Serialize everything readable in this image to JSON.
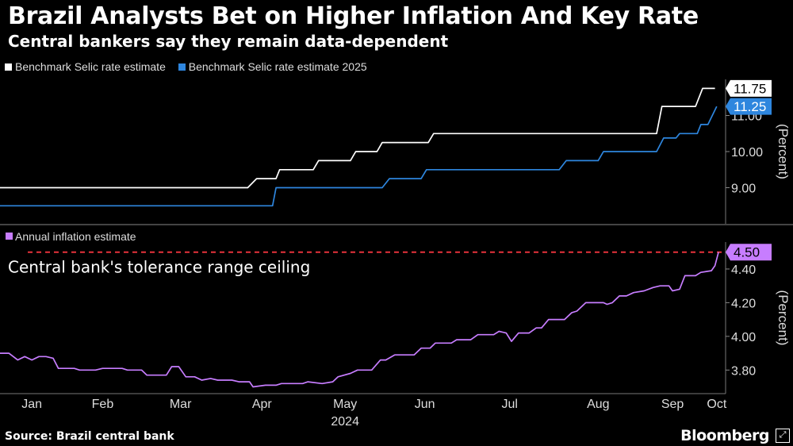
{
  "header": {
    "title": "Brazil Analysts Bet on Higher Inflation And Key Rate",
    "subtitle": "Central bankers say they remain data-dependent"
  },
  "colors": {
    "background": "#000000",
    "selic": "#ffffff",
    "selic2025": "#2e86de",
    "inflation": "#c77dff",
    "ceiling": "#e5323b",
    "grid": "#666666"
  },
  "footer": {
    "source": "Source: Brazil central bank",
    "brand": "Bloomberg",
    "brand_icon": "expand-icon"
  },
  "chart_data": [
    {
      "type": "line",
      "title": "Benchmark Selic rate estimates",
      "ylabel": "(Percent)",
      "ylim": [
        8.0,
        12.0
      ],
      "yticks": [
        "9.00",
        "10.00",
        "11.00"
      ],
      "ytick_values": [
        9.0,
        10.0,
        11.0
      ],
      "x_unit": "week index 0-40 (2024)",
      "legend": [
        {
          "name": "Benchmark Selic rate estimate",
          "color": "#ffffff"
        },
        {
          "name": "Benchmark Selic rate estimate 2025",
          "color": "#2e86de"
        }
      ],
      "series": [
        {
          "name": "Benchmark Selic rate estimate",
          "color": "#ffffff",
          "points": [
            [
              0,
              9.0
            ],
            [
              14,
              9.0
            ],
            [
              14.5,
              9.25
            ],
            [
              15.6,
              9.25
            ],
            [
              15.8,
              9.5
            ],
            [
              17.7,
              9.5
            ],
            [
              18,
              9.75
            ],
            [
              19.8,
              9.75
            ],
            [
              20.1,
              10.0
            ],
            [
              21.3,
              10.0
            ],
            [
              21.6,
              10.25
            ],
            [
              24.2,
              10.25
            ],
            [
              24.5,
              10.5
            ],
            [
              37.1,
              10.5
            ],
            [
              37.4,
              11.25
            ],
            [
              39.3,
              11.25
            ],
            [
              39.7,
              11.75
            ],
            [
              40.4,
              11.75
            ]
          ],
          "last_label": "11.75"
        },
        {
          "name": "Benchmark Selic rate estimate 2025",
          "color": "#2e86de",
          "points": [
            [
              0,
              8.5
            ],
            [
              15.4,
              8.5
            ],
            [
              15.6,
              9.0
            ],
            [
              21.6,
              9.0
            ],
            [
              22.0,
              9.25
            ],
            [
              23.8,
              9.25
            ],
            [
              24.1,
              9.5
            ],
            [
              31.6,
              9.5
            ],
            [
              32.0,
              9.75
            ],
            [
              33.8,
              9.75
            ],
            [
              34.1,
              10.0
            ],
            [
              37.1,
              10.0
            ],
            [
              37.5,
              10.375
            ],
            [
              38.2,
              10.375
            ],
            [
              38.4,
              10.5
            ],
            [
              39.4,
              10.5
            ],
            [
              39.6,
              10.75
            ],
            [
              40.0,
              10.75
            ],
            [
              40.5,
              11.25
            ]
          ],
          "last_label": "11.25"
        }
      ]
    },
    {
      "type": "line",
      "title": "Annual inflation estimate",
      "ylabel": "(Percent)",
      "ylim": [
        3.66,
        4.56
      ],
      "yticks": [
        "3.80",
        "4.00",
        "4.20",
        "4.40"
      ],
      "ytick_values": [
        3.8,
        4.0,
        4.2,
        4.4
      ],
      "x_unit": "week index 0-40 (2024)",
      "xticks": [
        "Jan",
        "Feb",
        "Mar",
        "Apr",
        "May",
        "Jun",
        "Jul",
        "Aug",
        "Sep",
        "Oct"
      ],
      "xtick_values": [
        1.8,
        5.8,
        10.2,
        14.8,
        19.5,
        24.0,
        28.8,
        33.8,
        38.0,
        40.5
      ],
      "year_label": "2024",
      "legend": [
        {
          "name": "Annual inflation estimate",
          "color": "#c77dff"
        }
      ],
      "series": [
        {
          "name": "Annual inflation estimate",
          "color": "#c77dff",
          "points": [
            [
              0,
              3.9
            ],
            [
              0.5,
              3.9
            ],
            [
              1.0,
              3.86
            ],
            [
              1.4,
              3.88
            ],
            [
              1.8,
              3.86
            ],
            [
              2.2,
              3.88
            ],
            [
              2.6,
              3.88
            ],
            [
              3.0,
              3.87
            ],
            [
              3.3,
              3.81
            ],
            [
              4.2,
              3.81
            ],
            [
              4.5,
              3.8
            ],
            [
              5.4,
              3.8
            ],
            [
              5.8,
              3.81
            ],
            [
              6.9,
              3.81
            ],
            [
              7.2,
              3.8
            ],
            [
              8.0,
              3.8
            ],
            [
              8.3,
              3.77
            ],
            [
              9.4,
              3.77
            ],
            [
              9.7,
              3.82
            ],
            [
              10.1,
              3.82
            ],
            [
              10.5,
              3.76
            ],
            [
              11.0,
              3.76
            ],
            [
              11.4,
              3.74
            ],
            [
              11.9,
              3.75
            ],
            [
              12.3,
              3.74
            ],
            [
              13.1,
              3.74
            ],
            [
              13.5,
              3.73
            ],
            [
              14.1,
              3.73
            ],
            [
              14.3,
              3.7
            ],
            [
              15.0,
              3.71
            ],
            [
              15.6,
              3.71
            ],
            [
              15.9,
              3.72
            ],
            [
              17.1,
              3.72
            ],
            [
              17.4,
              3.73
            ],
            [
              18.2,
              3.72
            ],
            [
              18.8,
              3.73
            ],
            [
              19.1,
              3.76
            ],
            [
              19.8,
              3.78
            ],
            [
              20.2,
              3.8
            ],
            [
              21.0,
              3.8
            ],
            [
              21.5,
              3.86
            ],
            [
              21.8,
              3.86
            ],
            [
              22.3,
              3.89
            ],
            [
              23.4,
              3.89
            ],
            [
              23.8,
              3.93
            ],
            [
              24.3,
              3.93
            ],
            [
              24.6,
              3.96
            ],
            [
              25.5,
              3.96
            ],
            [
              25.8,
              3.98
            ],
            [
              26.6,
              3.98
            ],
            [
              27.0,
              4.01
            ],
            [
              27.9,
              4.01
            ],
            [
              28.2,
              4.03
            ],
            [
              28.6,
              4.02
            ],
            [
              28.9,
              3.97
            ],
            [
              29.3,
              4.02
            ],
            [
              29.9,
              4.02
            ],
            [
              30.3,
              4.05
            ],
            [
              30.6,
              4.05
            ],
            [
              31.0,
              4.1
            ],
            [
              31.9,
              4.1
            ],
            [
              32.3,
              4.14
            ],
            [
              32.6,
              4.15
            ],
            [
              33.1,
              4.2
            ],
            [
              34.1,
              4.2
            ],
            [
              34.3,
              4.19
            ],
            [
              34.6,
              4.2
            ],
            [
              35.0,
              4.24
            ],
            [
              35.4,
              4.24
            ],
            [
              35.8,
              4.26
            ],
            [
              36.4,
              4.27
            ],
            [
              36.9,
              4.29
            ],
            [
              37.3,
              4.3
            ],
            [
              37.8,
              4.3
            ],
            [
              38.0,
              4.27
            ],
            [
              38.4,
              4.28
            ],
            [
              38.7,
              4.36
            ],
            [
              39.3,
              4.36
            ],
            [
              39.6,
              4.38
            ],
            [
              40.2,
              4.39
            ],
            [
              40.4,
              4.42
            ],
            [
              40.6,
              4.5
            ]
          ],
          "last_label": "4.50"
        }
      ],
      "reference_line": {
        "value": 4.5,
        "label": "Central bank's tolerance range ceiling",
        "style": "dashed",
        "color": "#e5323b"
      }
    }
  ]
}
